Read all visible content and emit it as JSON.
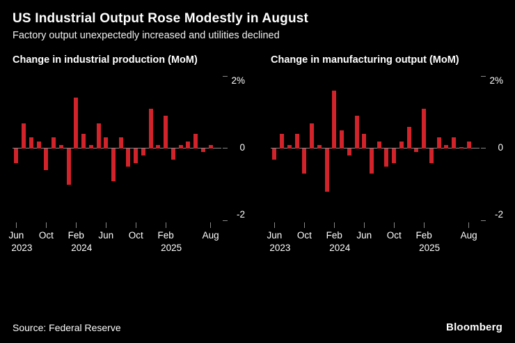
{
  "header": {
    "title": "US Industrial Output Rose Modestly in August",
    "subtitle": "Factory output unexpectedly increased and utilities declined"
  },
  "footer": {
    "source": "Source: Federal Reserve",
    "brand": "Bloomberg"
  },
  "colors": {
    "background": "#000000",
    "bar": "#d2232a",
    "axis": "#8a8a8a",
    "text": "#ffffff"
  },
  "chart_data": [
    {
      "type": "bar",
      "title": "Change in industrial production (MoM)",
      "ylabel": "%",
      "ylim": [
        -2,
        2
      ],
      "grid": false,
      "categories": [
        "Jun 2023",
        "Jul 2023",
        "Aug 2023",
        "Sep 2023",
        "Oct 2023",
        "Nov 2023",
        "Dec 2023",
        "Jan 2024",
        "Feb 2024",
        "Mar 2024",
        "Apr 2024",
        "May 2024",
        "Jun 2024",
        "Jul 2024",
        "Aug 2024",
        "Sep 2024",
        "Oct 2024",
        "Nov 2024",
        "Dec 2024",
        "Jan 2025",
        "Feb 2025",
        "Mar 2025",
        "Apr 2025",
        "May 2025",
        "Jun 2025",
        "Jul 2025",
        "Aug 2025"
      ],
      "values": [
        -0.4,
        0.7,
        0.3,
        0.2,
        -0.6,
        0.3,
        0.1,
        -1.0,
        1.4,
        0.4,
        0.1,
        0.7,
        0.3,
        -0.9,
        0.3,
        -0.5,
        -0.4,
        -0.2,
        1.1,
        0.1,
        0.9,
        -0.3,
        0.1,
        0.2,
        0.4,
        -0.1,
        0.1
      ],
      "yticks": [
        {
          "v": 2,
          "label": "2%"
        },
        {
          "v": 0,
          "label": "0"
        },
        {
          "v": -2,
          "label": "-2"
        }
      ],
      "xticks": [
        {
          "i": 0,
          "label": "Jun",
          "year": "2023"
        },
        {
          "i": 4,
          "label": "Oct"
        },
        {
          "i": 8,
          "label": "Feb",
          "year": "2024"
        },
        {
          "i": 12,
          "label": "Jun"
        },
        {
          "i": 16,
          "label": "Oct"
        },
        {
          "i": 20,
          "label": "Feb",
          "year": "2025"
        },
        {
          "i": 26,
          "label": "Aug"
        }
      ]
    },
    {
      "type": "bar",
      "title": "Change in manufacturing output (MoM)",
      "ylabel": "%",
      "ylim": [
        -2,
        2
      ],
      "grid": false,
      "categories": [
        "Jun 2023",
        "Jul 2023",
        "Aug 2023",
        "Sep 2023",
        "Oct 2023",
        "Nov 2023",
        "Dec 2023",
        "Jan 2024",
        "Feb 2024",
        "Mar 2024",
        "Apr 2024",
        "May 2024",
        "Jun 2024",
        "Jul 2024",
        "Aug 2024",
        "Sep 2024",
        "Oct 2024",
        "Nov 2024",
        "Dec 2024",
        "Jan 2025",
        "Feb 2025",
        "Mar 2025",
        "Apr 2025",
        "May 2025",
        "Jun 2025",
        "Jul 2025",
        "Aug 2025"
      ],
      "values": [
        -0.3,
        0.4,
        0.1,
        0.4,
        -0.7,
        0.7,
        0.1,
        -1.2,
        1.6,
        0.5,
        -0.2,
        0.9,
        0.4,
        -0.7,
        0.2,
        -0.5,
        -0.4,
        0.2,
        0.6,
        -0.1,
        1.1,
        -0.4,
        0.3,
        0.1,
        0.3,
        0.0,
        0.2
      ],
      "yticks": [
        {
          "v": 2,
          "label": "2%"
        },
        {
          "v": 0,
          "label": "0"
        },
        {
          "v": -2,
          "label": "-2"
        }
      ],
      "xticks": [
        {
          "i": 0,
          "label": "Jun",
          "year": "2023"
        },
        {
          "i": 4,
          "label": "Oct"
        },
        {
          "i": 8,
          "label": "Feb",
          "year": "2024"
        },
        {
          "i": 12,
          "label": "Jun"
        },
        {
          "i": 16,
          "label": "Oct"
        },
        {
          "i": 20,
          "label": "Feb",
          "year": "2025"
        },
        {
          "i": 26,
          "label": "Aug"
        }
      ]
    }
  ]
}
